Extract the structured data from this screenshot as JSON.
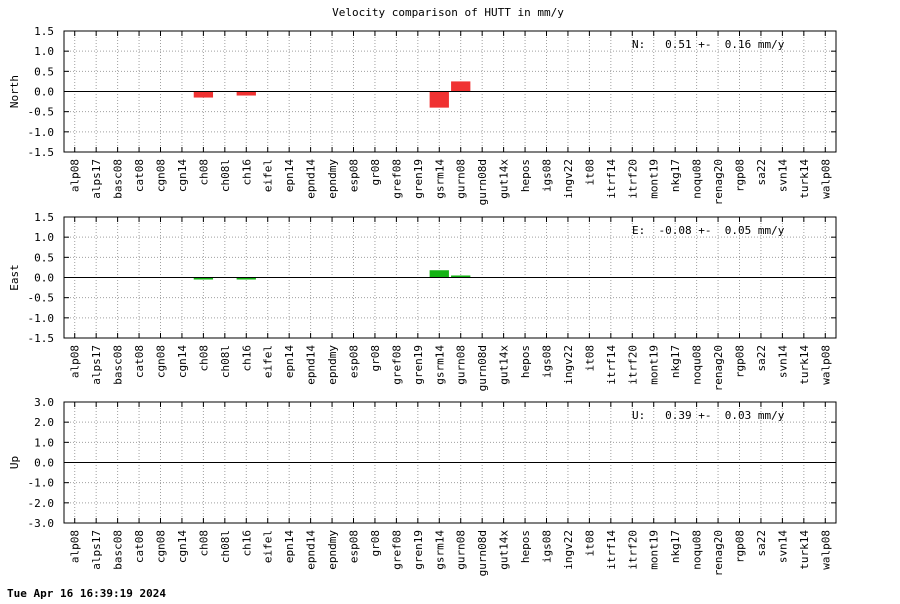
{
  "title": "Velocity comparison of HUTT in mm/y",
  "timestamp": "Tue Apr 16 16:39:19 2024",
  "chart_data": [
    {
      "type": "bar",
      "ylabel": "North",
      "ylim": [
        -1.5,
        1.5
      ],
      "yticks": [
        "1.5",
        "1.0",
        "0.5",
        "0.0",
        "-0.5",
        "-1.0",
        "-1.5"
      ],
      "ytick_values": [
        1.5,
        1.0,
        0.5,
        0.0,
        -0.5,
        -1.0,
        -1.5
      ],
      "grid": true,
      "color": "#f03232",
      "annotation": "N:   0.51 +-  0.16 mm/y",
      "categories": [
        "alp08",
        "alps17",
        "basc08",
        "cat08",
        "cgn08",
        "cgn14",
        "ch08",
        "ch08l",
        "ch16",
        "eifel",
        "epn14",
        "epnd14",
        "epndmy",
        "esp08",
        "gr08",
        "gref08",
        "gren19",
        "gsrm14",
        "gurn08",
        "gurn08d",
        "gut14x",
        "hepos",
        "igs08",
        "ingv22",
        "it08",
        "itrf14",
        "itrf20",
        "mont19",
        "nkg17",
        "noqu08",
        "renag20",
        "rgp08",
        "sa22",
        "svn14",
        "turk14",
        "walp08"
      ],
      "values": [
        0,
        0,
        0,
        0,
        0,
        0,
        -0.15,
        0,
        -0.1,
        0,
        0,
        0,
        0,
        0,
        0,
        0,
        0,
        -0.4,
        0.25,
        0,
        0,
        0,
        0,
        0,
        0,
        0,
        0,
        0,
        0,
        0,
        0,
        0,
        0,
        0,
        0,
        0
      ]
    },
    {
      "type": "bar",
      "ylabel": "East",
      "ylim": [
        -1.5,
        1.5
      ],
      "yticks": [
        "1.5",
        "1.0",
        "0.5",
        "0.0",
        "-0.5",
        "-1.0",
        "-1.5"
      ],
      "ytick_values": [
        1.5,
        1.0,
        0.5,
        0.0,
        -0.5,
        -1.0,
        -1.5
      ],
      "grid": true,
      "color": "#14b414",
      "annotation": "E:  -0.08 +-  0.05 mm/y",
      "categories": [
        "alp08",
        "alps17",
        "basc08",
        "cat08",
        "cgn08",
        "cgn14",
        "ch08",
        "ch08l",
        "ch16",
        "eifel",
        "epn14",
        "epnd14",
        "epndmy",
        "esp08",
        "gr08",
        "gref08",
        "gren19",
        "gsrm14",
        "gurn08",
        "gurn08d",
        "gut14x",
        "hepos",
        "igs08",
        "ingv22",
        "it08",
        "itrf14",
        "itrf20",
        "mont19",
        "nkg17",
        "noqu08",
        "renag20",
        "rgp08",
        "sa22",
        "svn14",
        "turk14",
        "walp08"
      ],
      "values": [
        0,
        0,
        0,
        0,
        0,
        0,
        -0.05,
        0,
        -0.05,
        0,
        0,
        0,
        0,
        0,
        0,
        0,
        0,
        0.18,
        0.05,
        0,
        0,
        0,
        0,
        0,
        0,
        0,
        0,
        0,
        0,
        0,
        0,
        0,
        0,
        0,
        0,
        0
      ]
    },
    {
      "type": "bar",
      "ylabel": "Up",
      "ylim": [
        -3.0,
        3.0
      ],
      "yticks": [
        "3.0",
        "2.0",
        "1.0",
        "0.0",
        "-1.0",
        "-2.0",
        "-3.0"
      ],
      "ytick_values": [
        3.0,
        2.0,
        1.0,
        0.0,
        -1.0,
        -2.0,
        -3.0
      ],
      "grid": true,
      "color": "#3232f0",
      "annotation": "U:   0.39 +-  0.03 mm/y",
      "categories": [
        "alp08",
        "alps17",
        "basc08",
        "cat08",
        "cgn08",
        "cgn14",
        "ch08",
        "ch08l",
        "ch16",
        "eifel",
        "epn14",
        "epnd14",
        "epndmy",
        "esp08",
        "gr08",
        "gref08",
        "gren19",
        "gsrm14",
        "gurn08",
        "gurn08d",
        "gut14x",
        "hepos",
        "igs08",
        "ingv22",
        "it08",
        "itrf14",
        "itrf20",
        "mont19",
        "nkg17",
        "noqu08",
        "renag20",
        "rgp08",
        "sa22",
        "svn14",
        "turk14",
        "walp08"
      ],
      "values": [
        0,
        0,
        0,
        0,
        0,
        0,
        0,
        0,
        0,
        0,
        0,
        0,
        0,
        0,
        0,
        0,
        0,
        0,
        0,
        0,
        0,
        0,
        0,
        0,
        0,
        0,
        0,
        0,
        0,
        0,
        0,
        0,
        0,
        0,
        0,
        0
      ]
    }
  ]
}
